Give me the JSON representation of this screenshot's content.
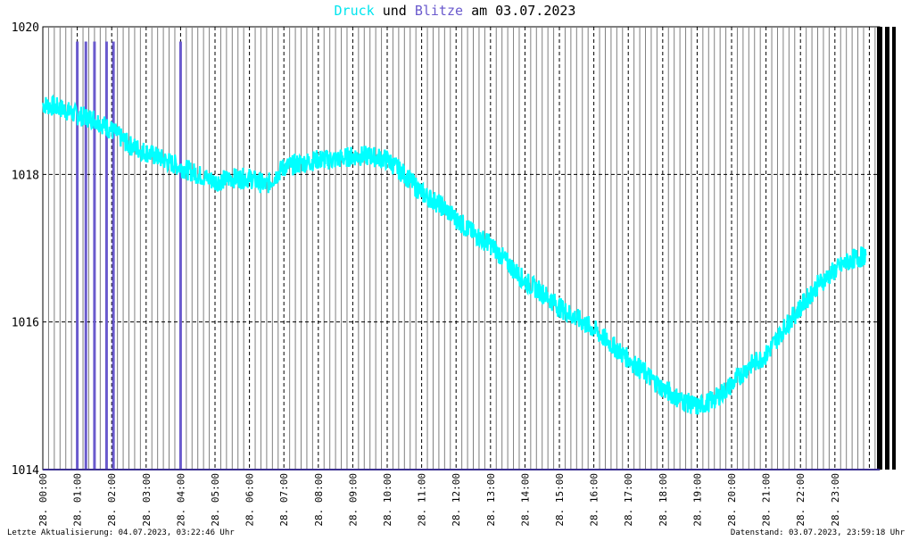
{
  "title": {
    "series1": "Druck",
    "join": "und",
    "series2": "Blitze",
    "prefix": "am",
    "date": "03.07.2023"
  },
  "footer": {
    "left": "Letzte Aktualisierung: 04.07.2023, 03:22:46 Uhr",
    "right": "Datenstand: 03.07.2023, 23:59:18 Uhr"
  },
  "colors": {
    "pressure": "#00ffff",
    "lightning": "#6a5acd",
    "grid_fine": "#808080",
    "grid_hour": "#000000",
    "baseline": "#3b2f8f"
  },
  "chart_data": {
    "type": "line",
    "ylim": [
      1014,
      1020
    ],
    "yticks": [
      1014,
      1016,
      1018,
      1020
    ],
    "xticks": [
      "28. 00:00",
      "28. 01:00",
      "28. 02:00",
      "28. 03:00",
      "28. 04:00",
      "28. 05:00",
      "28. 06:00",
      "28. 07:00",
      "28. 08:00",
      "28. 09:00",
      "28. 10:00",
      "28. 11:00",
      "28. 12:00",
      "28. 13:00",
      "28. 14:00",
      "28. 15:00",
      "28. 16:00",
      "28. 17:00",
      "28. 18:00",
      "28. 19:00",
      "28. 20:00",
      "28. 21:00",
      "28. 22:00",
      "28. 23:00"
    ],
    "grid": true,
    "series": [
      {
        "name": "Druck",
        "hours": [
          0,
          0.5,
          1,
          1.5,
          2,
          2.5,
          3,
          3.5,
          4,
          4.5,
          5,
          5.5,
          6,
          6.5,
          7,
          7.5,
          8,
          8.5,
          9,
          9.5,
          10,
          10.5,
          11,
          11.5,
          12,
          12.5,
          13,
          13.5,
          14,
          14.5,
          15,
          15.5,
          16,
          16.5,
          17,
          17.5,
          18,
          18.5,
          19,
          19.5,
          20,
          20.5,
          21,
          21.5,
          22,
          22.5,
          23,
          23.5,
          23.9
        ],
        "values": [
          1018.95,
          1018.9,
          1018.8,
          1018.75,
          1018.6,
          1018.4,
          1018.3,
          1018.2,
          1018.1,
          1018.0,
          1017.9,
          1017.95,
          1017.95,
          1017.85,
          1018.1,
          1018.15,
          1018.2,
          1018.2,
          1018.25,
          1018.25,
          1018.2,
          1018.0,
          1017.75,
          1017.6,
          1017.4,
          1017.2,
          1017.05,
          1016.8,
          1016.55,
          1016.4,
          1016.2,
          1016.05,
          1015.9,
          1015.7,
          1015.5,
          1015.3,
          1015.1,
          1014.95,
          1014.85,
          1014.95,
          1015.15,
          1015.4,
          1015.55,
          1015.9,
          1016.2,
          1016.5,
          1016.7,
          1016.85,
          1016.9
        ]
      },
      {
        "name": "Blitze",
        "strike_hours": [
          1.0,
          1.25,
          1.5,
          1.85,
          2.05,
          4.0
        ],
        "strike_level": 1019.8
      }
    ]
  }
}
